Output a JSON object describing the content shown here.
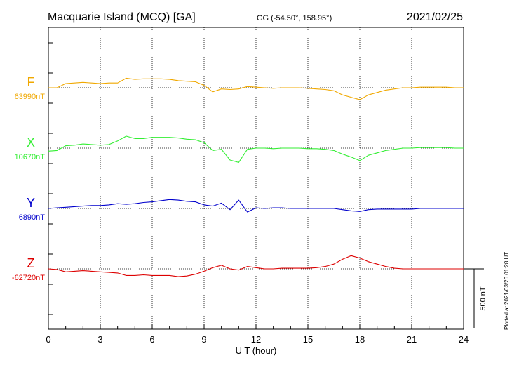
{
  "chart_data": {
    "type": "line",
    "title": "Macquarie Island (MCQ)  [GA]",
    "subtitle": "GG (-54.50°, 158.95°)",
    "date": "2021/02/25",
    "xlabel": "U T (hour)",
    "xlim": [
      0,
      24
    ],
    "xticks": [
      0,
      3,
      6,
      9,
      12,
      15,
      18,
      21,
      24
    ],
    "grid": true,
    "scale_bar_label": "500 nT",
    "scale_bar_nT": 500,
    "plotted_note": "Plotted at 2021/03/26 01:28 UT",
    "hours": [
      0,
      0.5,
      1,
      1.5,
      2,
      2.5,
      3,
      3.5,
      4,
      4.5,
      5,
      5.5,
      6,
      6.5,
      7,
      7.5,
      8,
      8.5,
      9,
      9.5,
      10,
      10.5,
      11,
      11.5,
      12,
      12.5,
      13,
      13.5,
      14,
      14.5,
      15,
      15.5,
      16,
      16.5,
      17,
      17.5,
      18,
      18.5,
      19,
      19.5,
      20,
      20.5,
      21,
      21.5,
      22,
      22.5,
      23,
      23.5,
      24
    ],
    "series": [
      {
        "name": "F",
        "baseline_label": "63990nT",
        "baseline_nT": 63990,
        "color": "#f0a800",
        "values": [
          0,
          0,
          35,
          40,
          45,
          40,
          35,
          40,
          40,
          80,
          70,
          75,
          75,
          75,
          70,
          60,
          55,
          50,
          20,
          -35,
          -10,
          -15,
          -10,
          10,
          5,
          0,
          -5,
          0,
          0,
          0,
          -5,
          -10,
          -15,
          -25,
          -60,
          -80,
          -100,
          -60,
          -40,
          -20,
          -10,
          0,
          0,
          5,
          5,
          5,
          5,
          0,
          0
        ]
      },
      {
        "name": "X",
        "baseline_label": "10670nT",
        "baseline_nT": 10670,
        "color": "#33ee33",
        "values": [
          -25,
          -20,
          20,
          25,
          35,
          30,
          25,
          30,
          60,
          100,
          80,
          80,
          90,
          90,
          90,
          85,
          75,
          70,
          45,
          -20,
          -10,
          -100,
          -120,
          -10,
          0,
          0,
          -5,
          0,
          0,
          0,
          -5,
          -5,
          -10,
          -20,
          -50,
          -75,
          -105,
          -60,
          -40,
          -20,
          -10,
          0,
          0,
          5,
          5,
          5,
          5,
          0,
          0
        ]
      },
      {
        "name": "Y",
        "baseline_label": "6890nT",
        "baseline_nT": 6890,
        "color": "#0000cc",
        "values": [
          0,
          5,
          10,
          15,
          20,
          25,
          25,
          30,
          40,
          35,
          40,
          50,
          55,
          65,
          75,
          70,
          60,
          55,
          30,
          20,
          45,
          -10,
          70,
          -30,
          5,
          0,
          5,
          5,
          0,
          0,
          0,
          0,
          0,
          0,
          -10,
          -20,
          -25,
          -10,
          -5,
          -5,
          -5,
          -5,
          -5,
          0,
          0,
          0,
          0,
          0,
          0
        ]
      },
      {
        "name": "Z",
        "baseline_label": "-62720nT",
        "baseline_nT": -62720,
        "color": "#dd0000",
        "values": [
          0,
          -5,
          -25,
          -20,
          -15,
          -20,
          -25,
          -30,
          -35,
          -55,
          -55,
          -50,
          -55,
          -55,
          -55,
          -65,
          -60,
          -45,
          -20,
          10,
          30,
          0,
          -10,
          20,
          10,
          0,
          0,
          5,
          5,
          5,
          5,
          10,
          20,
          40,
          80,
          110,
          90,
          60,
          40,
          20,
          5,
          0,
          0,
          0,
          0,
          0,
          0,
          0,
          0
        ]
      }
    ]
  }
}
